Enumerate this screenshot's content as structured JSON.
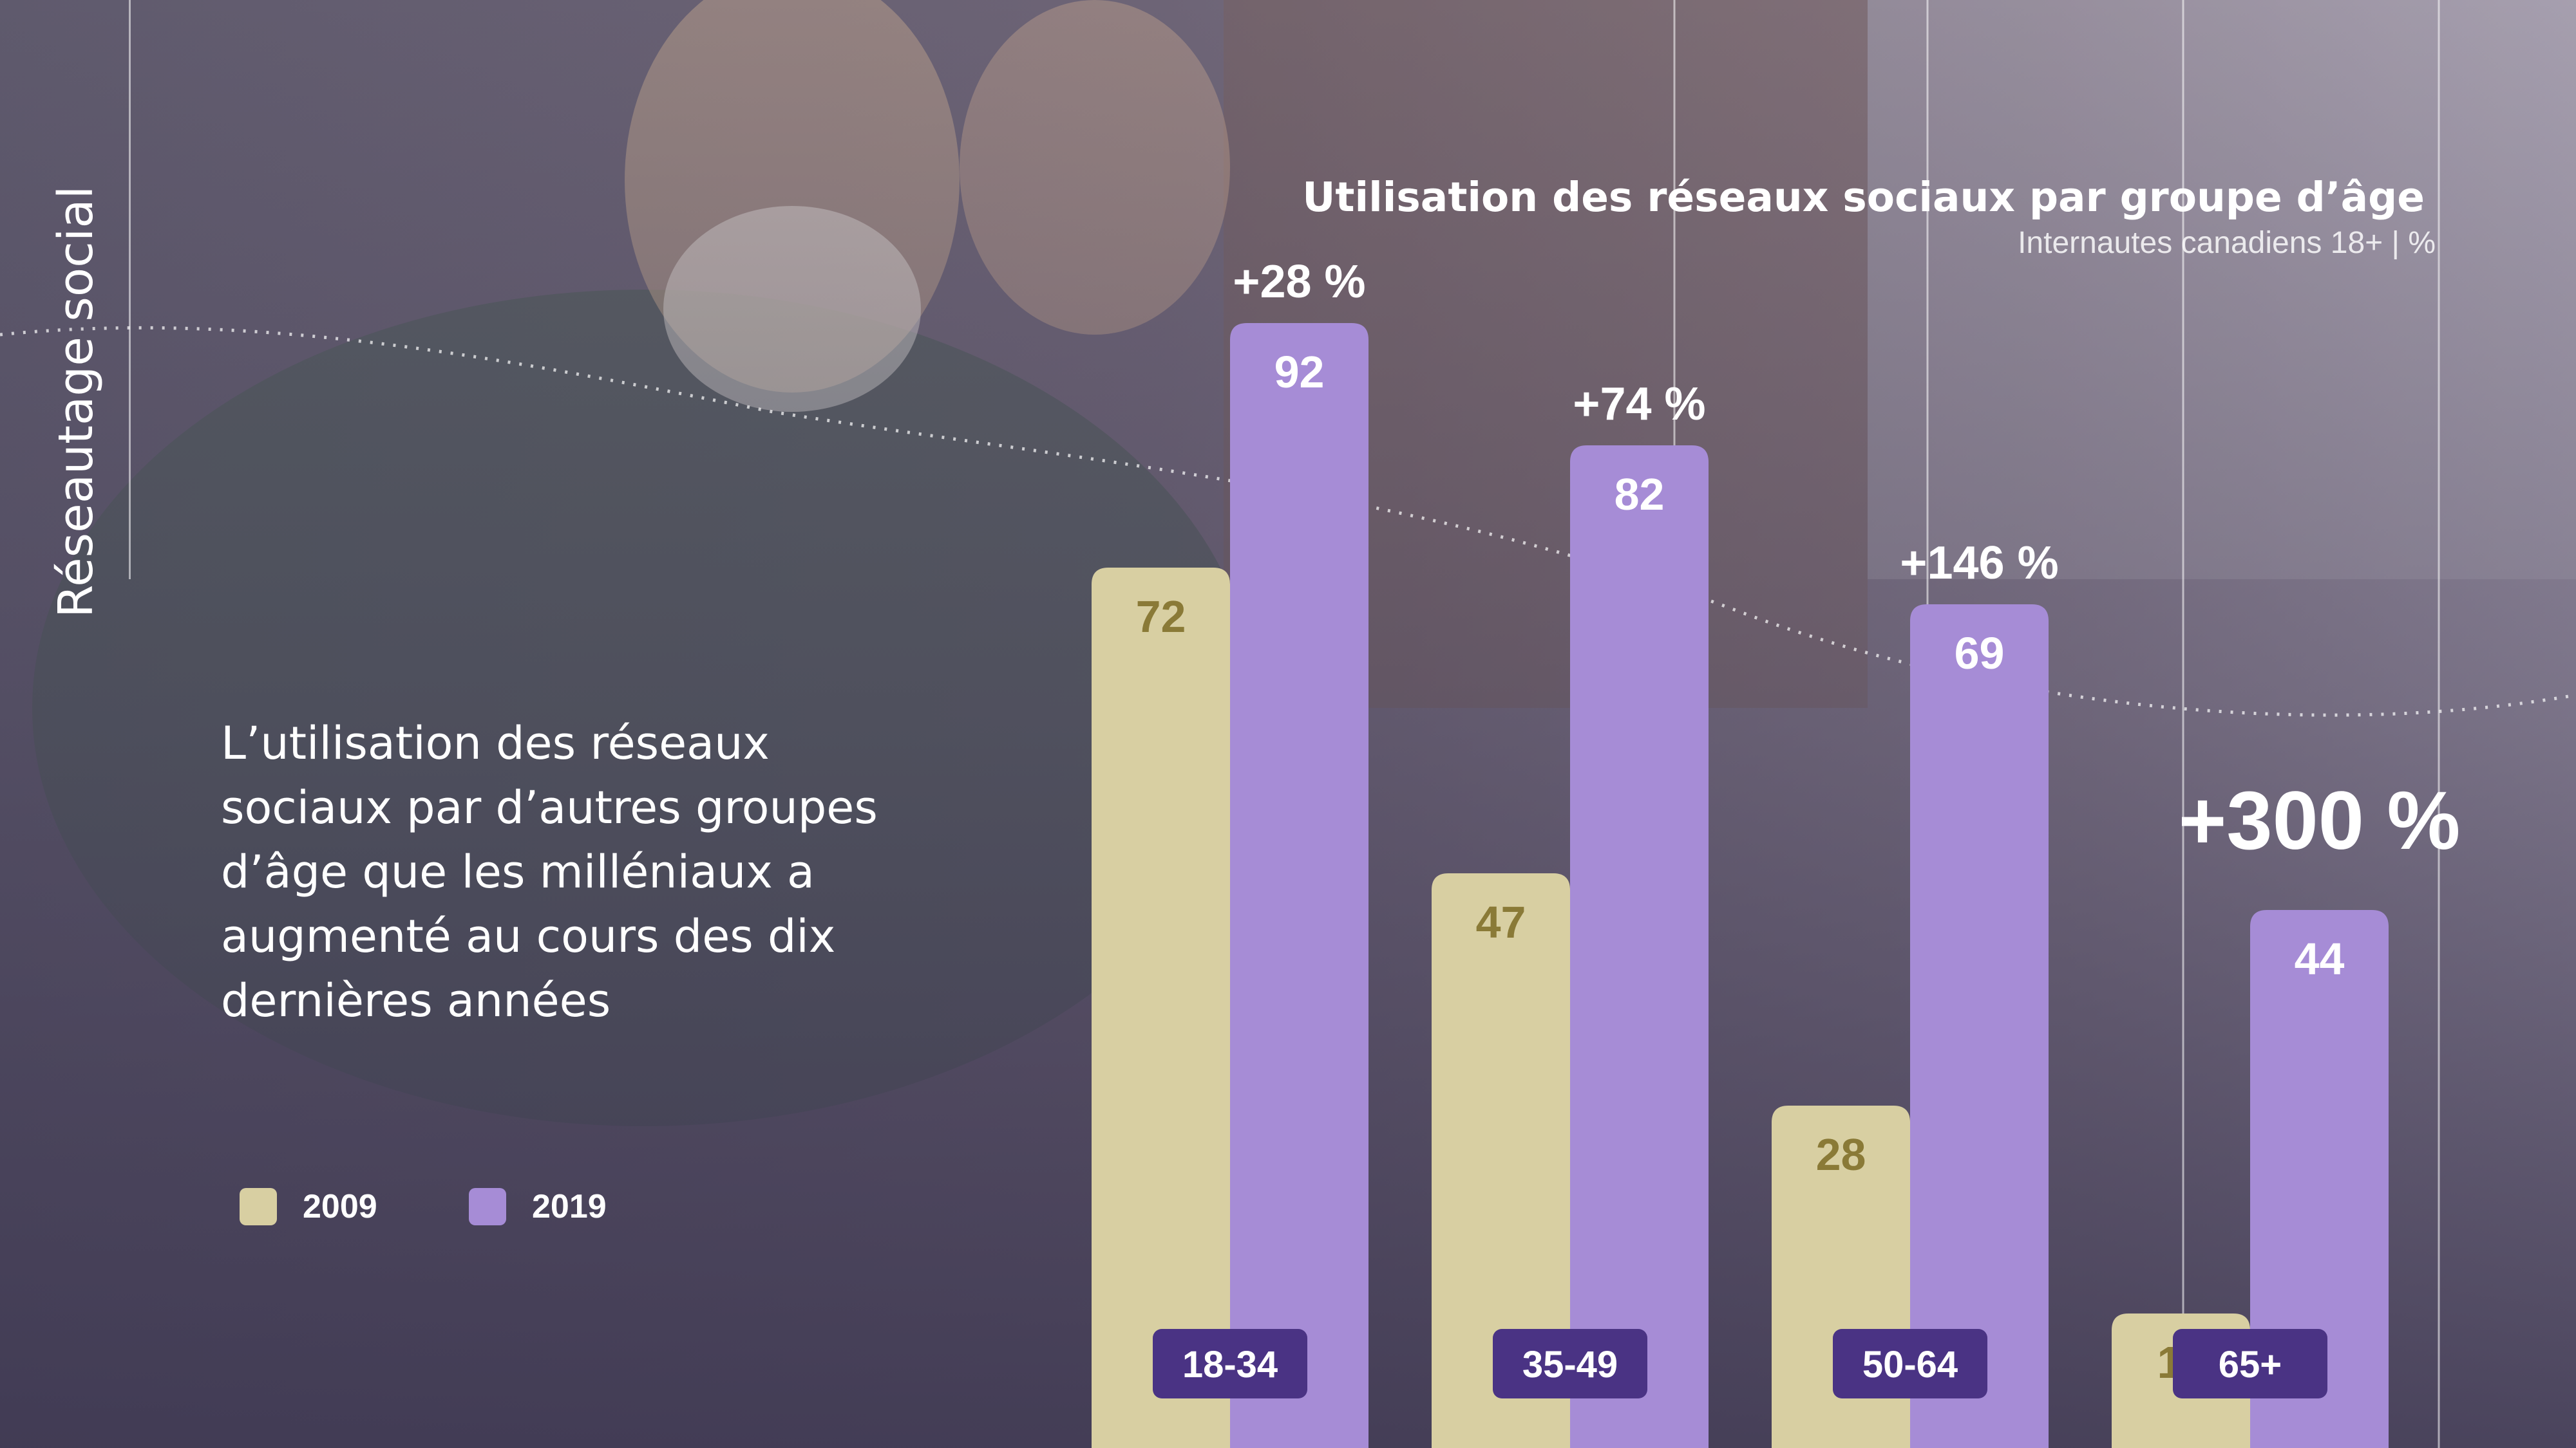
{
  "side_label": "Réseautage social",
  "body_text": "L’utilisation des réseaux sociaux par d’autres groupes d’âge que les milléniaux a augmenté au cours des dix dernières années",
  "colors": {
    "series_2009": "#d8cfa2",
    "series_2019": "#a68cd6",
    "label_2009": "#8a7a37",
    "category_pill": "#4a3384"
  },
  "chart_data": {
    "type": "bar",
    "title": "Utilisation des réseaux sociaux par groupe d’âge",
    "subtitle": "Internautes canadiens 18+ | %",
    "categories": [
      "18-34",
      "35-49",
      "50-64",
      "65+"
    ],
    "series": [
      {
        "name": "2009",
        "values": [
          72,
          47,
          28,
          11
        ]
      },
      {
        "name": "2019",
        "values": [
          92,
          82,
          69,
          44
        ]
      }
    ],
    "changes": [
      "+28 %",
      "+74 %",
      "+146 %",
      "+300 %"
    ],
    "ylim": [
      0,
      100
    ],
    "grid": false,
    "legend_position": "bottom-left"
  }
}
